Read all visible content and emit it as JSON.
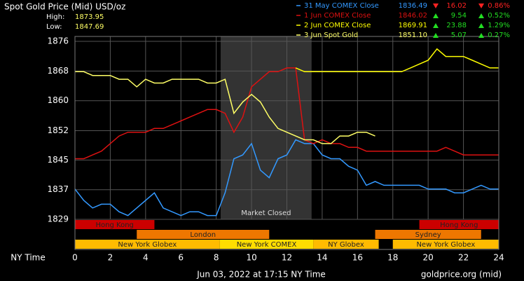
{
  "chart_data": {
    "type": "line",
    "title": "Spot Gold Price (Mid) USD/oz",
    "high_label": "High:",
    "high": "1873.95",
    "low_label": "Low:",
    "low": "1847.69",
    "x_label": "NY Time",
    "footer": "Jun 03, 2022 at 17:15 NY Time",
    "source": "goldprice.org (mid)",
    "x": [
      0,
      0.5,
      1,
      1.5,
      2,
      2.5,
      3,
      3.5,
      4,
      4.5,
      5,
      5.5,
      6,
      6.5,
      7,
      7.5,
      8,
      8.5,
      9,
      9.5,
      10,
      10.5,
      11,
      11.5,
      12,
      12.5,
      13,
      13.5,
      14,
      14.5,
      15,
      15.5,
      16,
      16.5,
      17,
      17.5,
      18,
      18.5,
      19,
      19.5,
      20,
      20.5,
      21,
      21.5,
      22,
      22.5,
      23,
      23.5,
      24
    ],
    "series": [
      {
        "name": "31 May COMEX Close",
        "close": "1836.49",
        "change": "16.02",
        "pct": "0.86%",
        "trend": "down",
        "color": "#3399ff",
        "values": [
          1837,
          1834,
          1832,
          1833,
          1833,
          1831,
          1830,
          1832,
          1834,
          1836,
          1832,
          1831,
          1830,
          1831,
          1831,
          1830,
          1830,
          1836,
          1845,
          1846,
          1849,
          1842,
          1840,
          1845,
          1846,
          1850,
          1849,
          1849,
          1846,
          1845,
          1845,
          1843,
          1842,
          1838,
          1839,
          1838,
          1838,
          1838,
          1838,
          1838,
          1837,
          1837,
          1837,
          1836,
          1836,
          1837,
          1838,
          1837,
          1837
        ]
      },
      {
        "name": "1 Jun COMEX Close",
        "close": "1846.02",
        "change": "9.54",
        "pct": "0.52%",
        "trend": "up",
        "color": "#dd1111",
        "values": [
          1845,
          1845,
          1846,
          1847,
          1849,
          1851,
          1852,
          1852,
          1852,
          1853,
          1853,
          1854,
          1855,
          1856,
          1857,
          1858,
          1858,
          1857,
          1852,
          1856,
          1864,
          1866,
          1868,
          1868,
          1869,
          1869,
          1850,
          1849,
          1850,
          1849,
          1849,
          1848,
          1848,
          1847,
          1847,
          1847,
          1847,
          1847,
          1847,
          1847,
          1847,
          1847,
          1848,
          1847,
          1846,
          1846,
          1846,
          1846,
          1846
        ]
      },
      {
        "name": "2 Jun COMEX Close",
        "close": "1869.91",
        "change": "23.88",
        "pct": "1.29%",
        "trend": "up",
        "color": "#ffff00",
        "values": [
          null,
          null,
          null,
          null,
          null,
          null,
          null,
          null,
          null,
          null,
          null,
          null,
          null,
          null,
          null,
          null,
          null,
          null,
          null,
          null,
          null,
          null,
          null,
          null,
          null,
          1869,
          1868,
          1868,
          1868,
          1868,
          1868,
          1868,
          1868,
          1868,
          1868,
          1868,
          1868,
          1868,
          1869,
          1870,
          1871,
          1874,
          1872,
          1872,
          1872,
          1871,
          1870,
          1869,
          1869
        ]
      },
      {
        "name": "3 Jun Spot Gold",
        "close": "1851.10",
        "change": "5.07",
        "pct": "0.27%",
        "trend": "up",
        "color": "#ffff66",
        "values": [
          1868,
          1868,
          1867,
          1867,
          1867,
          1866,
          1866,
          1864,
          1866,
          1865,
          1865,
          1866,
          1866,
          1866,
          1866,
          1865,
          1865,
          1866,
          1857,
          1860,
          1862,
          1860,
          1856,
          1853,
          1852,
          1851,
          1850,
          1850,
          1849,
          1849,
          1851,
          1851,
          1852,
          1852,
          1851,
          null,
          null,
          null,
          null,
          null,
          null,
          null,
          null,
          null,
          null,
          null,
          null,
          null,
          null
        ]
      }
    ],
    "xlim": [
      0,
      24
    ],
    "xticks": [
      0,
      2,
      4,
      6,
      8,
      10,
      12,
      14,
      16,
      18,
      20,
      22,
      24
    ],
    "ylim": [
      1829,
      1877.3
    ],
    "yticks": [
      1829,
      {
        "value": 1836.83,
        "label": "1837"
      },
      {
        "value": 1844.67,
        "label": "1845"
      },
      {
        "value": 1852.4,
        "label": "1852"
      },
      {
        "value": 1860.33,
        "label": "1860"
      },
      {
        "value": 1868.17,
        "label": "1868"
      },
      1876
    ],
    "grid": true,
    "closed": {
      "label": "Market Closed",
      "start": 8.25,
      "end": 13.4
    },
    "sessions": [
      {
        "label": "Hong Kong",
        "row": 0,
        "start": 0,
        "end": 4.5,
        "color": "#cc0000"
      },
      {
        "label": "Hong Kong",
        "row": 0,
        "start": 19.5,
        "end": 24,
        "color": "#cc0000"
      },
      {
        "label": "London",
        "row": 1,
        "start": 3.5,
        "end": 11,
        "color": "#ee7700"
      },
      {
        "label": "Sydney",
        "row": 1,
        "start": 17,
        "end": 23,
        "color": "#ee7700"
      },
      {
        "label": "New York Globex",
        "row": 2,
        "start": 0,
        "end": 8.2,
        "color": "#ffbb00"
      },
      {
        "label": "New York COMEX",
        "row": 2,
        "start": 8.2,
        "end": 13.5,
        "color": "#ffdd00"
      },
      {
        "label": "NY Globex",
        "row": 2,
        "start": 13.5,
        "end": 17.2,
        "color": "#ffbb00"
      },
      {
        "label": "New York Globex",
        "row": 2,
        "start": 18,
        "end": 24,
        "color": "#ffbb00"
      }
    ]
  }
}
